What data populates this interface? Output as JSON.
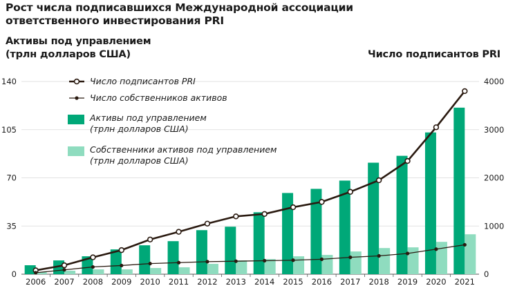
{
  "chart_data": {
    "type": "bar",
    "title_lines": [
      "Рост числа подписавшихся  Международной ассоциации",
      "ответственного инвестирования PRI"
    ],
    "ylabel_left_lines": [
      "Активы под управлением",
      "(трлн долларов США)"
    ],
    "ylabel_right": "Число подписантов PRI",
    "categories": [
      "2006",
      "2007",
      "2008",
      "2009",
      "2010",
      "2011",
      "2012",
      "2013",
      "2014",
      "2015",
      "2016",
      "2017",
      "2018",
      "2019",
      "2020",
      "2021"
    ],
    "y_left": {
      "lim": [
        0,
        140
      ],
      "ticks": [
        "0",
        "35",
        "70",
        "105",
        "140"
      ]
    },
    "y_right": {
      "lim": [
        0,
        4000
      ],
      "ticks": [
        "0",
        "1000",
        "2000",
        "3000",
        "4000"
      ]
    },
    "grid": true,
    "legend_placement": "top-left",
    "series": [
      {
        "name_lines": [
          "Активы под управлением",
          "(трлн долларов США)"
        ],
        "type": "bar",
        "axis": "left",
        "color": "#00a878",
        "values": [
          6.5,
          10,
          13,
          18,
          21,
          24,
          32,
          34.5,
          45,
          59,
          62,
          68,
          81,
          86,
          103,
          121
        ]
      },
      {
        "name_lines": [
          "Собственники активов под управлением",
          "(трлн долларов США)"
        ],
        "type": "bar",
        "axis": "left",
        "color": "#8fdcbf",
        "values": [
          1.5,
          2.5,
          3.5,
          3.5,
          4.5,
          5,
          7.5,
          10,
          11,
          13,
          14,
          16.5,
          19,
          19.5,
          23.5,
          29
        ]
      },
      {
        "name_lines": [
          "Число подписантов PRI"
        ],
        "type": "line",
        "axis": "right",
        "color": "#2a1a10",
        "values": [
          80,
          185,
          350,
          500,
          720,
          880,
          1050,
          1200,
          1250,
          1390,
          1500,
          1710,
          1950,
          2350,
          3050,
          3800
        ]
      },
      {
        "name_lines": [
          "Число собственников активов"
        ],
        "type": "line",
        "axis": "right",
        "color": "#2a1a10",
        "values": [
          30,
          90,
          150,
          180,
          220,
          240,
          260,
          270,
          280,
          290,
          310,
          350,
          380,
          430,
          520,
          610
        ]
      }
    ]
  }
}
